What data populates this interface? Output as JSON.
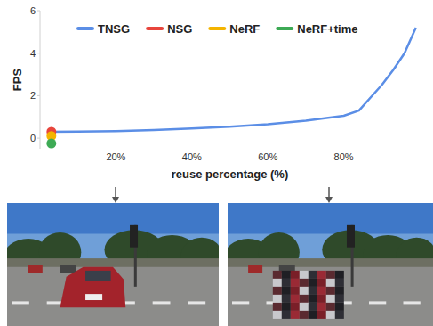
{
  "chart_data": {
    "type": "line",
    "x_label": "reuse percentage (%)",
    "y_label": "FPS",
    "xlim": [
      0,
      100
    ],
    "ylim": [
      -0.5,
      6
    ],
    "xticks": [
      {
        "value": 20,
        "label": "20%"
      },
      {
        "value": 40,
        "label": "40%"
      },
      {
        "value": 60,
        "label": "60%"
      },
      {
        "value": 80,
        "label": "80%"
      }
    ],
    "yticks": [
      0,
      2,
      4,
      6
    ],
    "grid": false,
    "legend": "top",
    "series": [
      {
        "name": "TNSG",
        "type": "line",
        "color": "#5b8ee6",
        "x": [
          2,
          10,
          20,
          30,
          40,
          50,
          60,
          70,
          80,
          84,
          87,
          90,
          93,
          96,
          99
        ],
        "values": [
          0.3,
          0.31,
          0.33,
          0.38,
          0.45,
          0.54,
          0.65,
          0.82,
          1.05,
          1.3,
          1.9,
          2.5,
          3.2,
          4.0,
          5.2
        ]
      },
      {
        "name": "NSG",
        "type": "scatter",
        "marker": "circle",
        "color": "#e8453c",
        "x": [
          3
        ],
        "values": [
          0.3
        ]
      },
      {
        "name": "NeRF",
        "type": "scatter",
        "marker": "circle",
        "color": "#f4b400",
        "x": [
          3
        ],
        "values": [
          0.1
        ]
      },
      {
        "name": "NeRF+time",
        "type": "scatter",
        "marker": "circle",
        "color": "#3daa55",
        "x": [
          3
        ],
        "values": [
          -0.25
        ]
      }
    ]
  }
}
